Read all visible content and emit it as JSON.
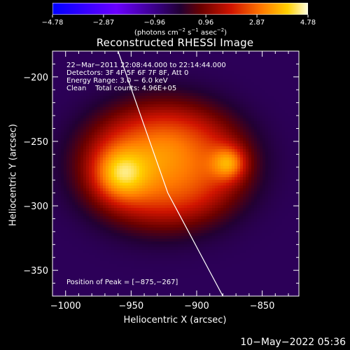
{
  "chart_data": {
    "type": "heatmap",
    "title": "Reconstructed RHESSI Image",
    "xlabel": "Heliocentric X (arcsec)",
    "ylabel": "Heliocentric Y (arcsec)",
    "xlim": [
      -1010,
      -822
    ],
    "ylim": [
      -370,
      -180
    ],
    "x_ticks": [
      -1000,
      -950,
      -900,
      -850
    ],
    "y_ticks": [
      -200,
      -250,
      -300,
      -350
    ],
    "x_tick_labels": [
      "−1000",
      "−950",
      "−900",
      "−850"
    ],
    "y_tick_labels": [
      "−200",
      "−250",
      "−300",
      "−350"
    ],
    "colorbar": {
      "min": -4.78,
      "max": 4.78,
      "tick_values": [
        -4.78,
        -2.87,
        -0.96,
        0.96,
        2.87,
        4.78
      ],
      "tick_labels": [
        "−4.78",
        "−2.87",
        "−0.96",
        "0.96",
        "2.87",
        "4.78"
      ],
      "units_text": "(photons cm",
      "units_exp1": "−2",
      "units_mid": " s",
      "units_exp2": "−1",
      "units_mid2": " asec",
      "units_exp3": "−2",
      "units_end": ")"
    },
    "background_level": -0.5,
    "sources": [
      {
        "x": -958,
        "y": -275,
        "peak": 4.7
      },
      {
        "x": -875,
        "y": -267,
        "peak": 4.78
      },
      {
        "x": -925,
        "y": -262,
        "peak": 3.2
      }
    ],
    "limb_line": [
      {
        "x": -960,
        "y": -180
      },
      {
        "x": -922,
        "y": -290
      },
      {
        "x": -880,
        "y": -370
      }
    ],
    "annotations": {
      "line1": "22−Mar−2011 22:08:44.000 to 22:14:44.000",
      "line2": "Detectors: 3F 4F 5F 6F 7F 8F, Att 0",
      "line3": "Energy Range: 3.0 − 6.0 keV",
      "line4": "Clean    Total counts: 4.96E+05",
      "peak": "Position of Peak = [−875,−267]"
    }
  },
  "timestamp": "10−May−2022 05:36"
}
